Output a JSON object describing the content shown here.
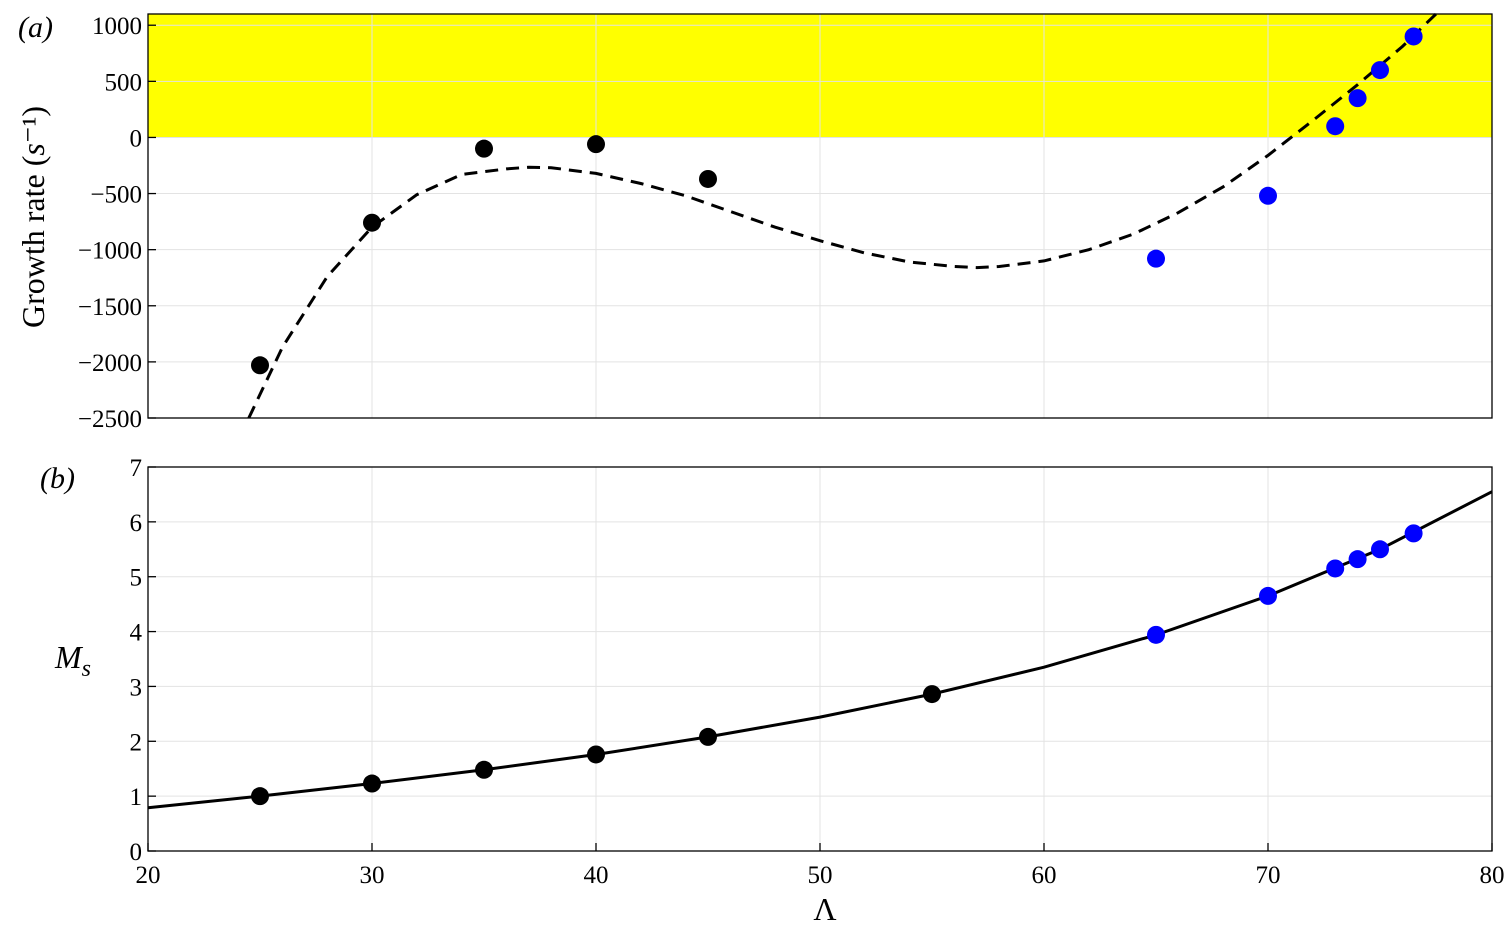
{
  "chart_data": [
    {
      "panel": "(a)",
      "type": "scatter",
      "title": "",
      "xlabel": "",
      "ylabel": "Growth rate (s⁻¹)",
      "xlim": [
        20,
        80
      ],
      "ylim": [
        -2500,
        1100
      ],
      "yticks": [
        -2500,
        -2000,
        -1500,
        -1000,
        -500,
        0,
        500,
        1000
      ],
      "ytick_labels": [
        "−2500",
        "−2000",
        "−1500",
        "−1000",
        "−500",
        "0",
        "500",
        "1000"
      ],
      "grid": true,
      "shaded_region": {
        "y_from": 0,
        "y_to": 1100,
        "color": "#ffff00"
      },
      "series": [
        {
          "color": "#000000",
          "marker": "circle",
          "x": [
            25,
            30,
            35,
            40,
            45
          ],
          "y": [
            -2030,
            -760,
            -100,
            -60,
            -370
          ]
        },
        {
          "color": "#0000ff",
          "marker": "circle",
          "x": [
            65,
            70,
            73,
            74,
            75,
            76.5
          ],
          "y": [
            -1080,
            -520,
            100,
            350,
            600,
            900
          ]
        }
      ],
      "fit_curve": {
        "style": "dashed",
        "color": "#000000",
        "x": [
          24.5,
          26,
          28,
          30,
          32,
          34,
          36,
          37,
          38,
          40,
          42,
          44,
          46,
          48,
          50,
          52,
          54,
          56,
          57,
          58,
          60,
          62,
          64,
          66,
          68,
          70,
          72,
          74,
          76,
          77.5
        ],
        "y": [
          -2500,
          -1870,
          -1240,
          -800,
          -510,
          -330,
          -280,
          -265,
          -270,
          -320,
          -410,
          -520,
          -660,
          -800,
          -920,
          -1030,
          -1110,
          -1150,
          -1160,
          -1150,
          -1100,
          -1000,
          -860,
          -670,
          -440,
          -160,
          150,
          470,
          810,
          1100
        ]
      }
    },
    {
      "panel": "(b)",
      "type": "scatter",
      "title": "",
      "xlabel": "Λ",
      "ylabel": "M_s",
      "xlim": [
        20,
        80
      ],
      "ylim": [
        0,
        7
      ],
      "xticks": [
        20,
        30,
        40,
        50,
        60,
        70,
        80
      ],
      "xtick_labels": [
        "20",
        "30",
        "40",
        "50",
        "60",
        "70",
        "80"
      ],
      "yticks": [
        0,
        1,
        2,
        3,
        4,
        5,
        6,
        7
      ],
      "ytick_labels": [
        "0",
        "1",
        "2",
        "3",
        "4",
        "5",
        "6",
        "7"
      ],
      "grid": true,
      "series": [
        {
          "color": "#000000",
          "marker": "circle",
          "x": [
            25,
            30,
            35,
            40,
            45,
            55
          ],
          "y": [
            1.0,
            1.23,
            1.48,
            1.76,
            2.08,
            2.86
          ]
        },
        {
          "color": "#0000ff",
          "marker": "circle",
          "x": [
            65,
            70,
            73,
            74,
            75,
            76.5
          ],
          "y": [
            3.94,
            4.65,
            5.15,
            5.32,
            5.5,
            5.79
          ]
        }
      ],
      "fit_curve": {
        "style": "solid",
        "color": "#000000",
        "x": [
          20,
          25,
          30,
          35,
          40,
          45,
          50,
          55,
          60,
          65,
          70,
          75,
          80
        ],
        "y": [
          0.79,
          1.0,
          1.23,
          1.48,
          1.76,
          2.08,
          2.44,
          2.86,
          3.35,
          3.94,
          4.65,
          5.5,
          6.55
        ]
      }
    }
  ]
}
